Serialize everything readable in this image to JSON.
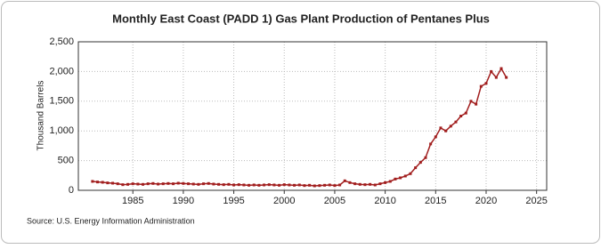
{
  "chart_data": {
    "type": "line",
    "title": "Monthly East Coast (PADD 1) Gas Plant Production of Pentanes Plus",
    "y_label": "Thousand Barrels",
    "source": "Source: U.S. Energy Information Administration",
    "x": [
      1981,
      1981.5,
      1982,
      1982.5,
      1983,
      1983.5,
      1984,
      1984.5,
      1985,
      1985.5,
      1986,
      1986.5,
      1987,
      1987.5,
      1988,
      1988.5,
      1989,
      1989.5,
      1990,
      1990.5,
      1991,
      1991.5,
      1992,
      1992.5,
      1993,
      1993.5,
      1994,
      1994.5,
      1995,
      1995.5,
      1996,
      1996.5,
      1997,
      1997.5,
      1998,
      1998.5,
      1999,
      1999.5,
      2000,
      2000.5,
      2001,
      2001.5,
      2002,
      2002.5,
      2003,
      2003.5,
      2004,
      2004.5,
      2005,
      2005.5,
      2006,
      2006.5,
      2007,
      2007.5,
      2008,
      2008.5,
      2009,
      2009.5,
      2010,
      2010.5,
      2011,
      2011.5,
      2012,
      2012.5,
      2013,
      2013.5,
      2014,
      2014.5,
      2015,
      2015.5,
      2016,
      2016.5,
      2017,
      2017.5,
      2018,
      2018.5,
      2019,
      2019.5,
      2020,
      2020.5,
      2021,
      2021.5,
      2022
    ],
    "series": [
      {
        "color": "#a11d1d",
        "values": [
          150,
          140,
          135,
          125,
          120,
          110,
          95,
          100,
          110,
          105,
          100,
          110,
          115,
          105,
          110,
          115,
          110,
          120,
          115,
          110,
          105,
          100,
          110,
          115,
          105,
          100,
          95,
          100,
          90,
          95,
          90,
          85,
          90,
          85,
          90,
          95,
          90,
          85,
          95,
          90,
          85,
          90,
          80,
          85,
          75,
          80,
          85,
          90,
          80,
          90,
          160,
          130,
          110,
          100,
          95,
          100,
          90,
          110,
          130,
          150,
          190,
          210,
          240,
          280,
          380,
          470,
          550,
          780,
          900,
          1050,
          1000,
          1080,
          1150,
          1250,
          1300,
          1500,
          1450,
          1750,
          1800,
          2000,
          1900,
          2050,
          1900
        ]
      }
    ],
    "xlim": [
      1979.6,
      2026
    ],
    "xticks": [
      1985,
      1990,
      1995,
      2000,
      2005,
      2010,
      2015,
      2020,
      2025
    ],
    "ylim": [
      0,
      2500
    ],
    "yticks": [
      0,
      500,
      {
        "value": 1000,
        "label": "1,000"
      },
      {
        "value": 1500,
        "label": "1,500"
      },
      {
        "value": 2000,
        "label": "2,000"
      },
      {
        "value": 2500,
        "label": "2,500"
      }
    ],
    "grid": true
  }
}
